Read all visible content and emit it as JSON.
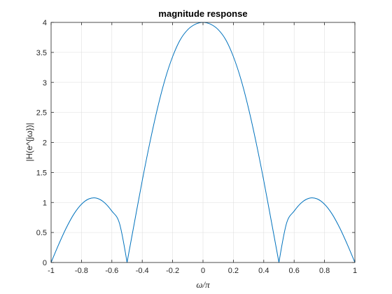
{
  "chart_data": {
    "type": "line",
    "title": "magnitude response",
    "xlabel": "ω/π",
    "ylabel": "|H(e^{jω})|",
    "xlim": [
      -1,
      1
    ],
    "ylim": [
      0,
      4
    ],
    "grid": true,
    "x_ticks": [
      "-1",
      "-0.8",
      "-0.6",
      "-0.4",
      "-0.2",
      "0",
      "0.2",
      "0.4",
      "0.6",
      "0.8",
      "1"
    ],
    "y_ticks": [
      "0",
      "0.5",
      "1",
      "1.5",
      "2",
      "2.5",
      "3",
      "3.5",
      "4"
    ],
    "series": [
      {
        "color": "#0072BD",
        "x": [
          -1,
          -0.95,
          -0.9,
          -0.85,
          -0.8,
          -0.75,
          -0.7,
          -0.65,
          -0.6,
          -0.55,
          -0.5,
          -0.45,
          -0.4,
          -0.35,
          -0.3,
          -0.25,
          -0.2,
          -0.15,
          -0.1,
          -0.05,
          0,
          0.05,
          0.1,
          0.15,
          0.2,
          0.25,
          0.3,
          0.35,
          0.4,
          0.45,
          0.5,
          0.55,
          0.6,
          0.65,
          0.7,
          0.75,
          0.8,
          0.85,
          0.9,
          0.95,
          1
        ],
        "y": [
          0.0,
          0.301,
          0.577,
          0.807,
          0.971,
          1.061,
          1.071,
          1.0,
          0.856,
          0.653,
          0.0,
          0.685,
          1.364,
          1.995,
          2.564,
          3.05,
          3.43,
          3.71,
          3.88,
          3.97,
          4.0,
          3.97,
          3.88,
          3.71,
          3.43,
          3.05,
          2.564,
          1.995,
          1.364,
          0.685,
          0.0,
          0.653,
          0.856,
          1.0,
          1.071,
          1.061,
          0.971,
          0.807,
          0.577,
          0.301,
          0.0
        ]
      }
    ]
  }
}
